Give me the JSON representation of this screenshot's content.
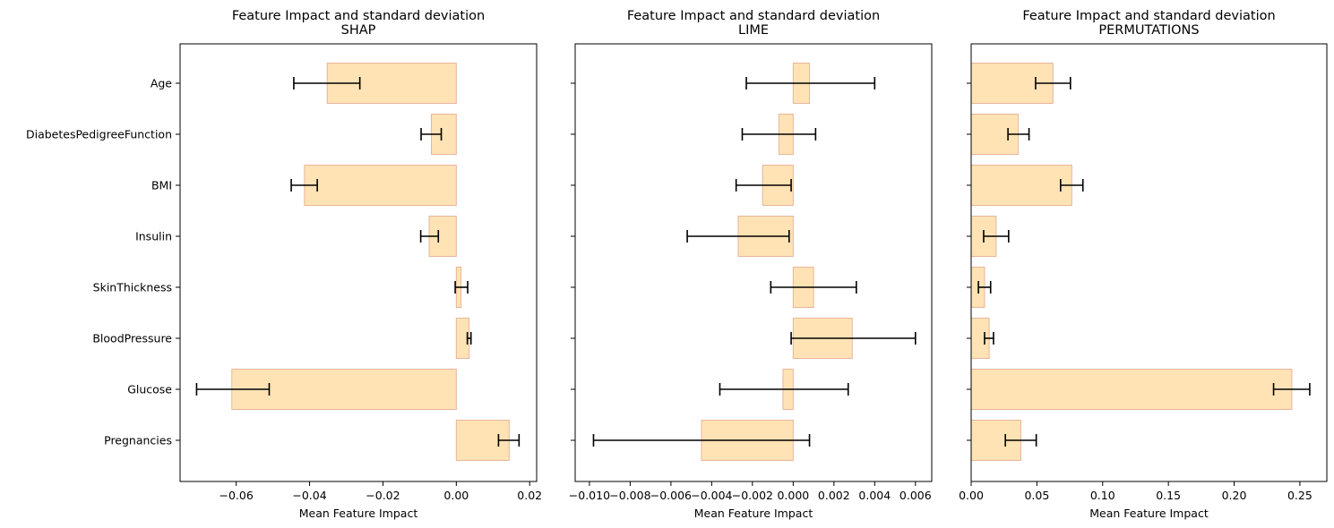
{
  "chart_data": [
    {
      "type": "bar",
      "orientation": "horizontal",
      "title": "Feature Impact and standard deviation\nSHAP",
      "xlabel": "Mean Feature Impact",
      "ylabel": "",
      "categories": [
        "Pregnancies",
        "Glucose",
        "BloodPressure",
        "SkinThickness",
        "Insulin",
        "BMI",
        "DiabetesPedigreeFunction",
        "Age"
      ],
      "values": [
        0.0144,
        -0.0612,
        0.0035,
        0.0013,
        -0.0074,
        -0.0414,
        -0.0068,
        -0.0352
      ],
      "error_low": [
        0.0115,
        -0.0708,
        0.003,
        -0.0003,
        -0.0097,
        -0.045,
        -0.0096,
        -0.0443
      ],
      "error_high": [
        0.0171,
        -0.051,
        0.004,
        0.0031,
        -0.0049,
        -0.0379,
        -0.0041,
        -0.0263
      ],
      "xlim": [
        -0.0753,
        0.0219
      ],
      "xticks": [
        -0.06,
        -0.04,
        -0.02,
        0.0,
        0.02
      ],
      "xtick_labels": [
        "−0.06",
        "−0.04",
        "−0.02",
        "0.00",
        "0.02"
      ],
      "show_ytick_labels": true,
      "grid": false,
      "bar_fill": "#ffe3b4",
      "bar_edge": "#e8b49c",
      "error_color": "#000000"
    },
    {
      "type": "bar",
      "orientation": "horizontal",
      "title": "Feature Impact and standard deviation\nLIME",
      "xlabel": "Mean Feature Impact",
      "ylabel": "",
      "categories": [
        "Pregnancies",
        "Glucose",
        "BloodPressure",
        "SkinThickness",
        "Insulin",
        "BMI",
        "DiabetesPedigreeFunction",
        "Age"
      ],
      "values": [
        -0.0045,
        -0.0005,
        0.0029,
        0.001,
        -0.0027,
        -0.0015,
        -0.0007,
        0.0008
      ],
      "error_low": [
        -0.0098,
        -0.0036,
        -0.0001,
        -0.0011,
        -0.0052,
        -0.0028,
        -0.0025,
        -0.0023
      ],
      "error_high": [
        0.0008,
        0.0027,
        0.006,
        0.0031,
        -0.0002,
        -0.0001,
        0.0011,
        0.004
      ],
      "xlim": [
        -0.0107,
        0.0068
      ],
      "xticks": [
        -0.01,
        -0.008,
        -0.006,
        -0.004,
        -0.002,
        0.0,
        0.002,
        0.004,
        0.006
      ],
      "xtick_labels": [
        "−0.010",
        "−0.008",
        "−0.006",
        "−0.004",
        "−0.002",
        "0.000",
        "0.002",
        "0.004",
        "0.006"
      ],
      "show_ytick_labels": false,
      "grid": false,
      "bar_fill": "#ffe3b4",
      "bar_edge": "#e8b49c",
      "error_color": "#000000"
    },
    {
      "type": "bar",
      "orientation": "horizontal",
      "title": "Feature Impact and standard deviation\nPERMUTATIONS",
      "xlabel": "Mean Feature Impact",
      "ylabel": "",
      "categories": [
        "Pregnancies",
        "Glucose",
        "BloodPressure",
        "SkinThickness",
        "Insulin",
        "BMI",
        "DiabetesPedigreeFunction",
        "Age"
      ],
      "values": [
        0.0378,
        0.2439,
        0.0137,
        0.0102,
        0.019,
        0.0765,
        0.0358,
        0.0622
      ],
      "error_low": [
        0.026,
        0.23,
        0.0102,
        0.0055,
        0.0095,
        0.068,
        0.028,
        0.049
      ],
      "error_high": [
        0.0495,
        0.2575,
        0.017,
        0.0148,
        0.0285,
        0.085,
        0.044,
        0.0755
      ],
      "xlim": [
        0.0,
        0.2705
      ],
      "xticks": [
        0.0,
        0.05,
        0.1,
        0.15,
        0.2,
        0.25
      ],
      "xtick_labels": [
        "0.00",
        "0.05",
        "0.10",
        "0.15",
        "0.20",
        "0.25"
      ],
      "show_ytick_labels": false,
      "grid": false,
      "bar_fill": "#ffe3b4",
      "bar_edge": "#e8b49c",
      "error_color": "#000000"
    }
  ]
}
